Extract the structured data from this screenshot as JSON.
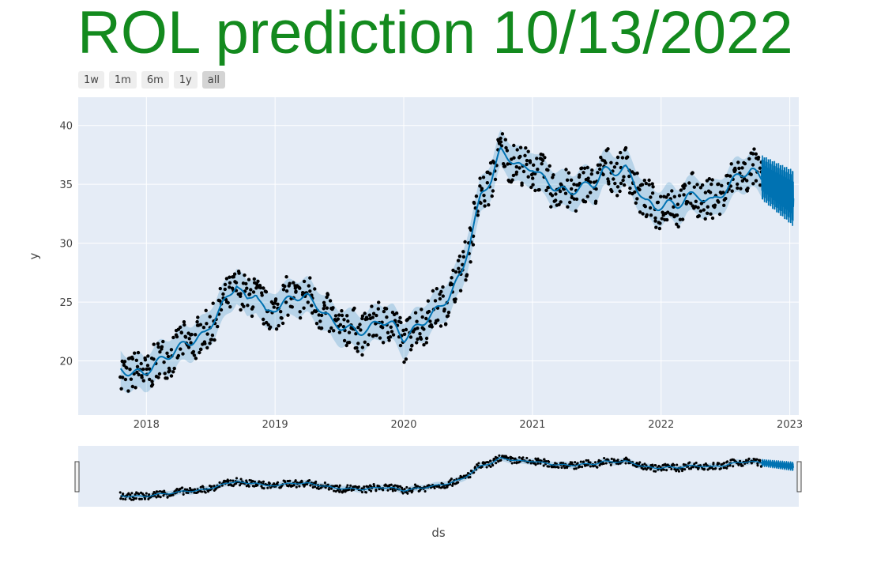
{
  "title": "ROL prediction 10/13/2022",
  "colors": {
    "title": "#138a1e",
    "plot_bg": "#e5ecf6",
    "grid": "#ffffff",
    "forecast_line": "#0072b2",
    "uncertainty_band": "#0072b2",
    "actual_points": "#000000"
  },
  "range_buttons": [
    {
      "label": "1w",
      "active": false
    },
    {
      "label": "1m",
      "active": false
    },
    {
      "label": "6m",
      "active": false
    },
    {
      "label": "1y",
      "active": false
    },
    {
      "label": "all",
      "active": true
    }
  ],
  "chart_data": {
    "type": "line",
    "title": "ROL prediction 10/13/2022",
    "xlabel": "ds",
    "ylabel": "y",
    "x_ticks": [
      "2018",
      "2019",
      "2020",
      "2021",
      "2022",
      "2023"
    ],
    "y_ticks": [
      20,
      25,
      30,
      35,
      40
    ],
    "xlim": [
      2017.47,
      2023.07
    ],
    "ylim": [
      15.4,
      42.4
    ],
    "history_end": 2022.78,
    "forecast_end": 2023.03,
    "series": [
      {
        "name": "trend",
        "x": [
          2017.8,
          2017.9,
          2017.98,
          2018.05,
          2018.12,
          2018.22,
          2018.3,
          2018.38,
          2018.45,
          2018.55,
          2018.62,
          2018.7,
          2018.78,
          2018.85,
          2018.93,
          2019.0,
          2019.08,
          2019.15,
          2019.25,
          2019.35,
          2019.45,
          2019.55,
          2019.65,
          2019.72,
          2019.82,
          2019.92,
          2020.0,
          2020.1,
          2020.2,
          2020.28,
          2020.35,
          2020.45,
          2020.52,
          2020.6,
          2020.68,
          2020.75,
          2020.83,
          2020.92,
          2021.0,
          2021.08,
          2021.18,
          2021.28,
          2021.38,
          2021.48,
          2021.55,
          2021.63,
          2021.72,
          2021.8,
          2021.88,
          2021.95,
          2022.05,
          2022.12,
          2022.2,
          2022.3,
          2022.4,
          2022.5,
          2022.6,
          2022.7,
          2022.78
        ],
        "y": [
          19.2,
          19.0,
          18.9,
          19.6,
          20.1,
          20.8,
          21.5,
          21.8,
          22.2,
          24.0,
          25.2,
          26.6,
          25.0,
          26.0,
          23.9,
          24.5,
          25.0,
          25.5,
          25.4,
          24.5,
          23.2,
          22.8,
          22.5,
          22.6,
          23.5,
          23.0,
          21.9,
          22.8,
          23.8,
          24.5,
          25.5,
          27.4,
          30.5,
          34.0,
          35.5,
          37.8,
          37.2,
          36.3,
          36.5,
          35.5,
          34.7,
          34.3,
          34.8,
          35.0,
          36.2,
          36.0,
          36.4,
          35.0,
          33.5,
          33.0,
          33.4,
          33.1,
          34.0,
          34.0,
          33.5,
          34.5,
          35.8,
          36.2,
          35.5
        ]
      },
      {
        "name": "forecast_oscillation",
        "x_range": [
          2022.78,
          2023.03
        ],
        "y_center": [
          35.6,
          33.8
        ],
        "y_amplitude": [
          1.9,
          2.4
        ]
      },
      {
        "name": "uncertainty_band",
        "offset": 1.5
      },
      {
        "name": "actual",
        "mode": "markers",
        "note": "daily closing prices scattered around the trend within the band"
      }
    ]
  }
}
